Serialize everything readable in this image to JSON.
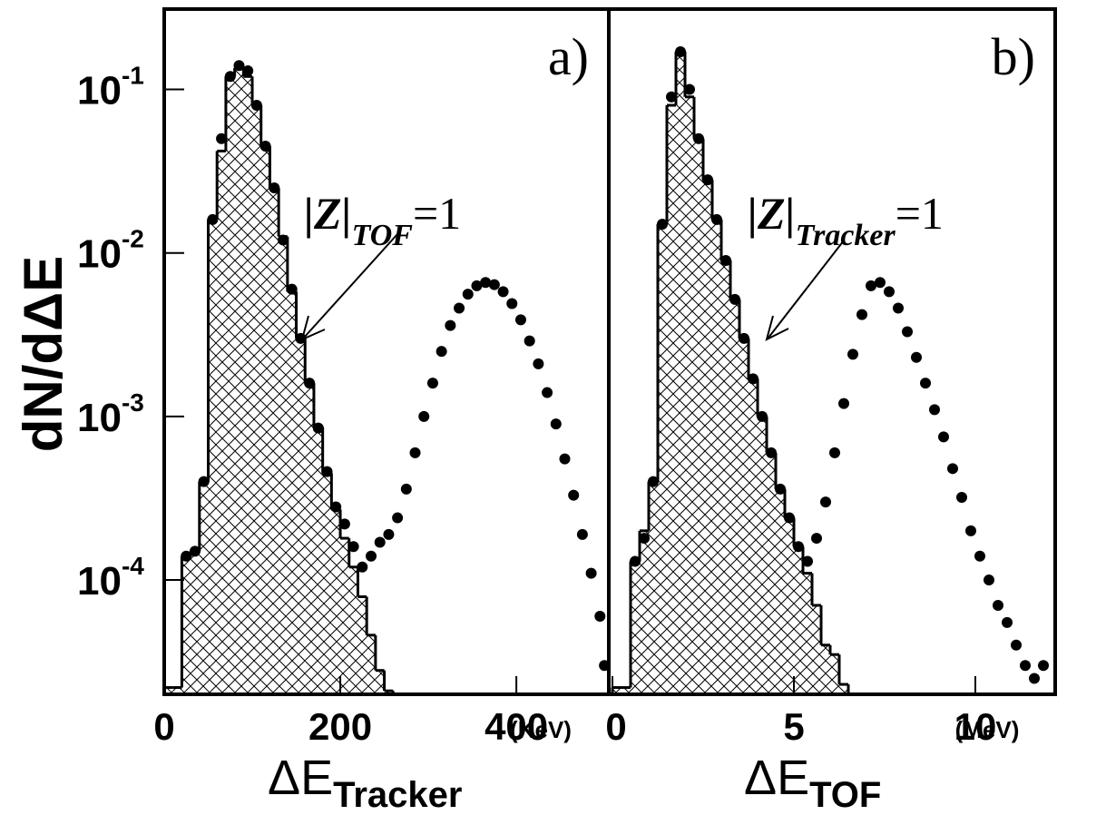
{
  "chart_data": [
    {
      "type": "histogram",
      "panel_label": "a)",
      "y_label": "dN/dΔE",
      "x_label": "ΔE",
      "x_label_sub": "Tracker",
      "x_unit": "(KeV)",
      "annotation": "|Z|",
      "annotation_sub": "TOF",
      "annotation_tail": "=1",
      "log_y": true,
      "xlim": [
        0,
        505
      ],
      "xticks": [
        0,
        200,
        400
      ],
      "ylim": [
        2e-05,
        0.31
      ],
      "yticks": [
        {
          "value": 0.1,
          "label": "10",
          "sup": "-1"
        },
        {
          "value": 0.01,
          "label": "10",
          "sup": "-2"
        },
        {
          "value": 0.001,
          "label": "10",
          "sup": "-3"
        },
        {
          "value": 0.0001,
          "label": "10",
          "sup": "-4"
        }
      ],
      "histogram": {
        "color": "#000000",
        "bins": [
          0,
          10,
          20,
          30,
          40,
          50,
          60,
          70,
          80,
          90,
          100,
          110,
          120,
          130,
          140,
          150,
          160,
          170,
          180,
          190,
          200,
          210,
          220,
          230,
          240,
          250,
          260
        ],
        "values": [
          2.2e-05,
          2.2e-05,
          0.00014,
          0.00015,
          0.0004,
          0.016,
          0.042,
          0.12,
          0.135,
          0.12,
          0.08,
          0.045,
          0.025,
          0.0126,
          0.0058,
          0.003,
          0.0016,
          0.00086,
          0.00045,
          0.00027,
          0.00018,
          0.00012,
          7.9e-05,
          4.6e-05,
          2.8e-05,
          2.1e-05
        ]
      },
      "points": {
        "color": "#000000",
        "x": [
          25,
          35,
          45,
          55,
          65,
          75,
          85,
          95,
          105,
          115,
          125,
          135,
          145,
          155,
          165,
          175,
          185,
          195,
          205,
          215,
          225,
          235,
          245,
          255,
          265,
          275,
          285,
          295,
          305,
          315,
          325,
          335,
          345,
          355,
          365,
          375,
          385,
          395,
          405,
          415,
          425,
          435,
          445,
          455,
          465,
          475,
          485,
          495,
          500
        ],
        "values": [
          0.00014,
          0.00015,
          0.0004,
          0.016,
          0.05,
          0.12,
          0.14,
          0.13,
          0.08,
          0.045,
          0.025,
          0.012,
          0.006,
          0.003,
          0.0016,
          0.00085,
          0.00046,
          0.00028,
          0.00022,
          0.00016,
          0.00012,
          0.00014,
          0.00017,
          0.00019,
          0.00024,
          0.00036,
          0.0006,
          0.001,
          0.0016,
          0.0025,
          0.0036,
          0.0046,
          0.0056,
          0.0063,
          0.0066,
          0.0064,
          0.0058,
          0.0049,
          0.0039,
          0.0029,
          0.0021,
          0.0014,
          0.0009,
          0.00055,
          0.00033,
          0.00019,
          0.00011,
          6e-05,
          3e-05
        ]
      }
    },
    {
      "type": "histogram",
      "panel_label": "b)",
      "x_label": "ΔE",
      "x_label_sub": "TOF",
      "x_unit": "(MeV)",
      "annotation": "|Z|",
      "annotation_sub": "Tracker",
      "annotation_tail": "=1",
      "log_y": true,
      "xlim": [
        -0.1,
        12.2
      ],
      "xticks": [
        0,
        5,
        10
      ],
      "ylim": [
        2e-05,
        0.31
      ],
      "histogram": {
        "color": "#000000",
        "bins": [
          0,
          0.25,
          0.5,
          0.75,
          1,
          1.25,
          1.5,
          1.75,
          2,
          2.25,
          2.5,
          2.75,
          3,
          3.25,
          3.5,
          3.75,
          4,
          4.25,
          4.5,
          4.75,
          5,
          5.25,
          5.5,
          5.75,
          6,
          6.25,
          6.5
        ],
        "values": [
          2.2e-05,
          2.2e-05,
          0.00013,
          0.0002,
          0.0004,
          0.015,
          0.08,
          0.17,
          0.09,
          0.05,
          0.028,
          0.016,
          0.009,
          0.0052,
          0.003,
          0.0017,
          0.001,
          0.0006,
          0.00036,
          0.00024,
          0.00016,
          0.00011,
          7e-05,
          4e-05,
          3.5e-05,
          2.3e-05
        ]
      },
      "points": {
        "color": "#000000",
        "x": [
          0.625,
          0.875,
          1.125,
          1.375,
          1.625,
          1.875,
          2.125,
          2.375,
          2.625,
          2.875,
          3.125,
          3.375,
          3.625,
          3.875,
          4.125,
          4.375,
          4.625,
          4.875,
          5.125,
          5.375,
          5.625,
          5.875,
          6.125,
          6.375,
          6.625,
          6.875,
          7.125,
          7.375,
          7.625,
          7.875,
          8.125,
          8.375,
          8.625,
          8.875,
          9.125,
          9.375,
          9.625,
          9.875,
          10.125,
          10.375,
          10.625,
          10.875,
          11.125,
          11.375,
          11.625,
          11.875
        ],
        "values": [
          0.00013,
          0.00018,
          0.0004,
          0.015,
          0.09,
          0.17,
          0.1,
          0.05,
          0.028,
          0.016,
          0.009,
          0.0052,
          0.003,
          0.0017,
          0.001,
          0.0006,
          0.00036,
          0.00024,
          0.00016,
          0.00013,
          0.00018,
          0.0003,
          0.0006,
          0.0012,
          0.0024,
          0.0042,
          0.0063,
          0.0066,
          0.0058,
          0.0046,
          0.0033,
          0.0023,
          0.0016,
          0.0011,
          0.00075,
          0.00048,
          0.00032,
          0.0002,
          0.00014,
          0.0001,
          7e-05,
          5.5e-05,
          4e-05,
          3e-05,
          2.5e-05,
          3e-05
        ]
      }
    }
  ]
}
